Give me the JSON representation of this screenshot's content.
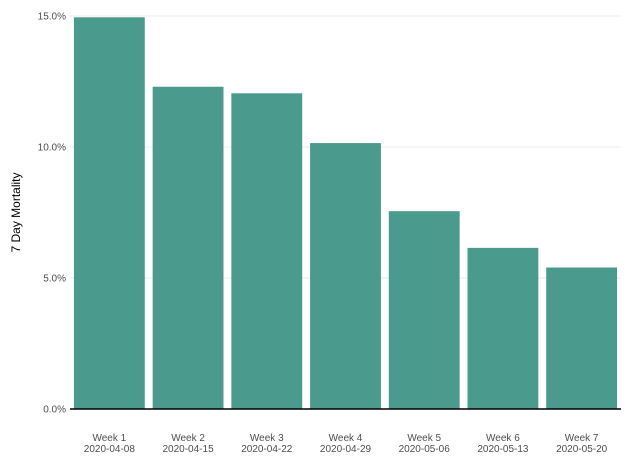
{
  "chart_data": {
    "type": "bar",
    "categories": [
      [
        "Week 1",
        "2020-04-08"
      ],
      [
        "Week 2",
        "2020-04-15"
      ],
      [
        "Week 3",
        "2020-04-22"
      ],
      [
        "Week 4",
        "2020-04-29"
      ],
      [
        "Week 5",
        "2020-05-06"
      ],
      [
        "Week 6",
        "2020-05-13"
      ],
      [
        "Week 7",
        "2020-05-20"
      ]
    ],
    "values": [
      14.95,
      12.3,
      12.05,
      10.15,
      7.55,
      6.15,
      5.4
    ],
    "title": "",
    "xlabel": "",
    "ylabel": "7 Day Mortality",
    "ylim": [
      0,
      15
    ],
    "yticks": [
      {
        "value": 0,
        "label": "0.0%"
      },
      {
        "value": 5,
        "label": "5.0%"
      },
      {
        "value": 10,
        "label": "10.0%"
      },
      {
        "value": 15,
        "label": "15.0%"
      }
    ],
    "grid": true,
    "legend": "none",
    "bar_color": "#4a9b8e"
  }
}
